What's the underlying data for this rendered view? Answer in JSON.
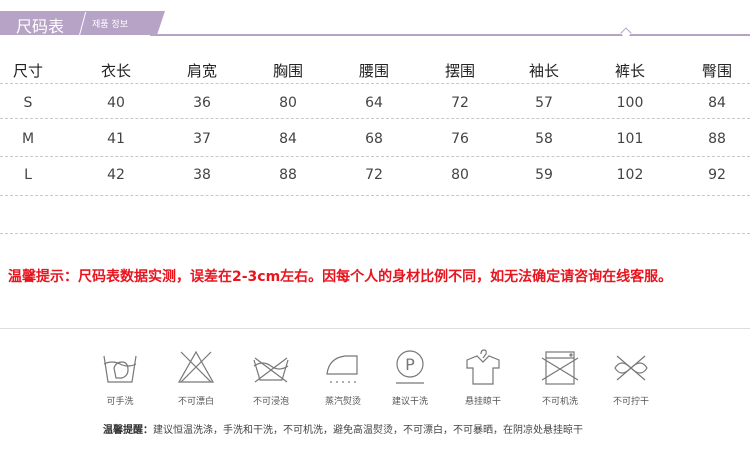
{
  "header": {
    "title": "尺码表",
    "subtitle": "제품 정보",
    "accent": "#b7a3c6"
  },
  "table": {
    "columns": [
      "尺寸",
      "衣长",
      "肩宽",
      "胸围",
      "腰围",
      "摆围",
      "袖长",
      "裤长",
      "臀围"
    ],
    "rows": [
      [
        "S",
        "40",
        "36",
        "80",
        "64",
        "72",
        "57",
        "100",
        "84"
      ],
      [
        "M",
        "41",
        "37",
        "84",
        "68",
        "76",
        "58",
        "101",
        "88"
      ],
      [
        "L",
        "42",
        "38",
        "88",
        "72",
        "80",
        "59",
        "102",
        "92"
      ]
    ]
  },
  "notice": {
    "text": "温馨提示：尺码表数据实测，误差在2-3cm左右。因每个人的身材比例不同，如无法确定请咨询在线客服。",
    "color": "#e8141e"
  },
  "care": [
    {
      "icon": "hand-wash-icon",
      "label": "可手洗"
    },
    {
      "icon": "no-bleach-icon",
      "label": "不可漂白"
    },
    {
      "icon": "no-soak-icon",
      "label": "不可浸泡"
    },
    {
      "icon": "steam-iron-icon",
      "label": "蒸汽熨烫"
    },
    {
      "icon": "dry-clean-icon",
      "label": "建议干洗"
    },
    {
      "icon": "hang-dry-icon",
      "label": "悬挂晾干"
    },
    {
      "icon": "no-machine-wash-icon",
      "label": "不可机洗"
    },
    {
      "icon": "no-wring-icon",
      "label": "不可拧干"
    }
  ],
  "footer": {
    "label": "温馨提醒：",
    "text": "建议恒温洗涤，手洗和干洗，不可机洗，避免高温熨烫，不可漂白，不可暴晒，在阴凉处悬挂晾干"
  }
}
